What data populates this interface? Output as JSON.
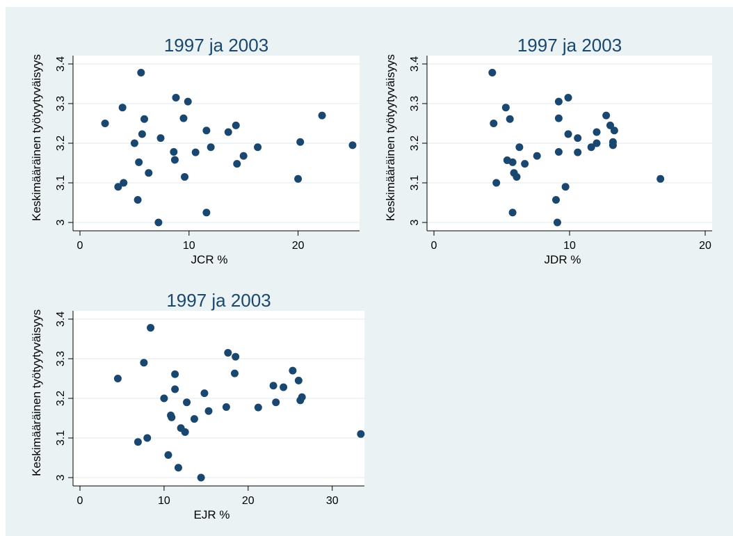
{
  "figure": {
    "background": "#eaf2f3",
    "plot_background": "#ffffff",
    "marker_color": "#1a476f",
    "grid_color": "#eaf2f3"
  },
  "chart_data": [
    {
      "type": "scatter",
      "title": "1997 ja 2003",
      "xlabel": "JCR %",
      "ylabel": "Keskimääräinen työtyytyväisyys",
      "xlim": [
        0,
        25
      ],
      "ylim": [
        3,
        3.4
      ],
      "xticks": [
        0,
        10,
        20
      ],
      "yticks": [
        3,
        3.1,
        3.2,
        3.3,
        3.4
      ],
      "grid": true,
      "points": [
        [
          2.3,
          3.25
        ],
        [
          3.5,
          3.09
        ],
        [
          3.9,
          3.29
        ],
        [
          4.0,
          3.1
        ],
        [
          5.0,
          3.2
        ],
        [
          5.3,
          3.057
        ],
        [
          5.4,
          3.152
        ],
        [
          5.6,
          3.378
        ],
        [
          5.7,
          3.223
        ],
        [
          5.9,
          3.261
        ],
        [
          6.3,
          3.125
        ],
        [
          7.2,
          3.0
        ],
        [
          7.4,
          3.213
        ],
        [
          8.6,
          3.178
        ],
        [
          8.7,
          3.158
        ],
        [
          8.8,
          3.315
        ],
        [
          9.5,
          3.263
        ],
        [
          9.6,
          3.115
        ],
        [
          9.9,
          3.305
        ],
        [
          10.6,
          3.177
        ],
        [
          11.6,
          3.232
        ],
        [
          11.6,
          3.025
        ],
        [
          12.0,
          3.19
        ],
        [
          13.6,
          3.228
        ],
        [
          14.3,
          3.245
        ],
        [
          14.4,
          3.148
        ],
        [
          15.0,
          3.168
        ],
        [
          16.3,
          3.19
        ],
        [
          20.0,
          3.11
        ],
        [
          20.2,
          3.203
        ],
        [
          22.2,
          3.27
        ],
        [
          25.0,
          3.195
        ]
      ]
    },
    {
      "type": "scatter",
      "title": "1997 ja 2003",
      "xlabel": "JDR %",
      "ylabel": "Keskimääräinen työtyytyväisyys",
      "xlim": [
        0,
        20
      ],
      "ylim": [
        3,
        3.4
      ],
      "xticks": [
        0,
        10,
        20
      ],
      "yticks": [
        3,
        3.1,
        3.2,
        3.3,
        3.4
      ],
      "grid": true,
      "points": [
        [
          4.3,
          3.378
        ],
        [
          4.4,
          3.25
        ],
        [
          4.6,
          3.1
        ],
        [
          5.3,
          3.29
        ],
        [
          5.4,
          3.157
        ],
        [
          5.6,
          3.261
        ],
        [
          5.8,
          3.025
        ],
        [
          5.8,
          3.152
        ],
        [
          5.9,
          3.125
        ],
        [
          6.1,
          3.115
        ],
        [
          6.3,
          3.19
        ],
        [
          6.7,
          3.148
        ],
        [
          7.6,
          3.168
        ],
        [
          9.0,
          3.057
        ],
        [
          9.1,
          3.0
        ],
        [
          9.2,
          3.178
        ],
        [
          9.2,
          3.263
        ],
        [
          9.2,
          3.305
        ],
        [
          9.7,
          3.09
        ],
        [
          9.9,
          3.315
        ],
        [
          9.9,
          3.223
        ],
        [
          10.6,
          3.213
        ],
        [
          10.6,
          3.177
        ],
        [
          11.6,
          3.19
        ],
        [
          12.0,
          3.2
        ],
        [
          12.0,
          3.228
        ],
        [
          12.7,
          3.27
        ],
        [
          13.0,
          3.245
        ],
        [
          13.2,
          3.195
        ],
        [
          13.2,
          3.203
        ],
        [
          13.3,
          3.232
        ],
        [
          16.7,
          3.11
        ]
      ]
    },
    {
      "type": "scatter",
      "title": "1997 ja 2003",
      "xlabel": "EJR %",
      "ylabel": "Keskimääräinen työtyytyväisyys",
      "xlim": [
        0,
        33
      ],
      "ylim": [
        3,
        3.4
      ],
      "xticks": [
        0,
        10,
        20,
        30
      ],
      "yticks": [
        3,
        3.1,
        3.2,
        3.3,
        3.4
      ],
      "grid": true,
      "points": [
        [
          4.5,
          3.25
        ],
        [
          6.9,
          3.09
        ],
        [
          7.6,
          3.29
        ],
        [
          8.0,
          3.1
        ],
        [
          8.4,
          3.378
        ],
        [
          10.0,
          3.2
        ],
        [
          10.5,
          3.057
        ],
        [
          10.8,
          3.157
        ],
        [
          10.9,
          3.152
        ],
        [
          11.3,
          3.261
        ],
        [
          11.3,
          3.223
        ],
        [
          11.7,
          3.025
        ],
        [
          12.0,
          3.125
        ],
        [
          12.5,
          3.115
        ],
        [
          12.7,
          3.19
        ],
        [
          13.6,
          3.148
        ],
        [
          14.4,
          3.0
        ],
        [
          14.8,
          3.213
        ],
        [
          15.3,
          3.168
        ],
        [
          17.4,
          3.178
        ],
        [
          17.6,
          3.315
        ],
        [
          18.4,
          3.263
        ],
        [
          18.5,
          3.305
        ],
        [
          21.2,
          3.177
        ],
        [
          23.0,
          3.232
        ],
        [
          23.3,
          3.19
        ],
        [
          24.2,
          3.228
        ],
        [
          25.3,
          3.27
        ],
        [
          26.0,
          3.245
        ],
        [
          26.2,
          3.195
        ],
        [
          26.4,
          3.203
        ],
        [
          33.4,
          3.11
        ]
      ]
    }
  ]
}
